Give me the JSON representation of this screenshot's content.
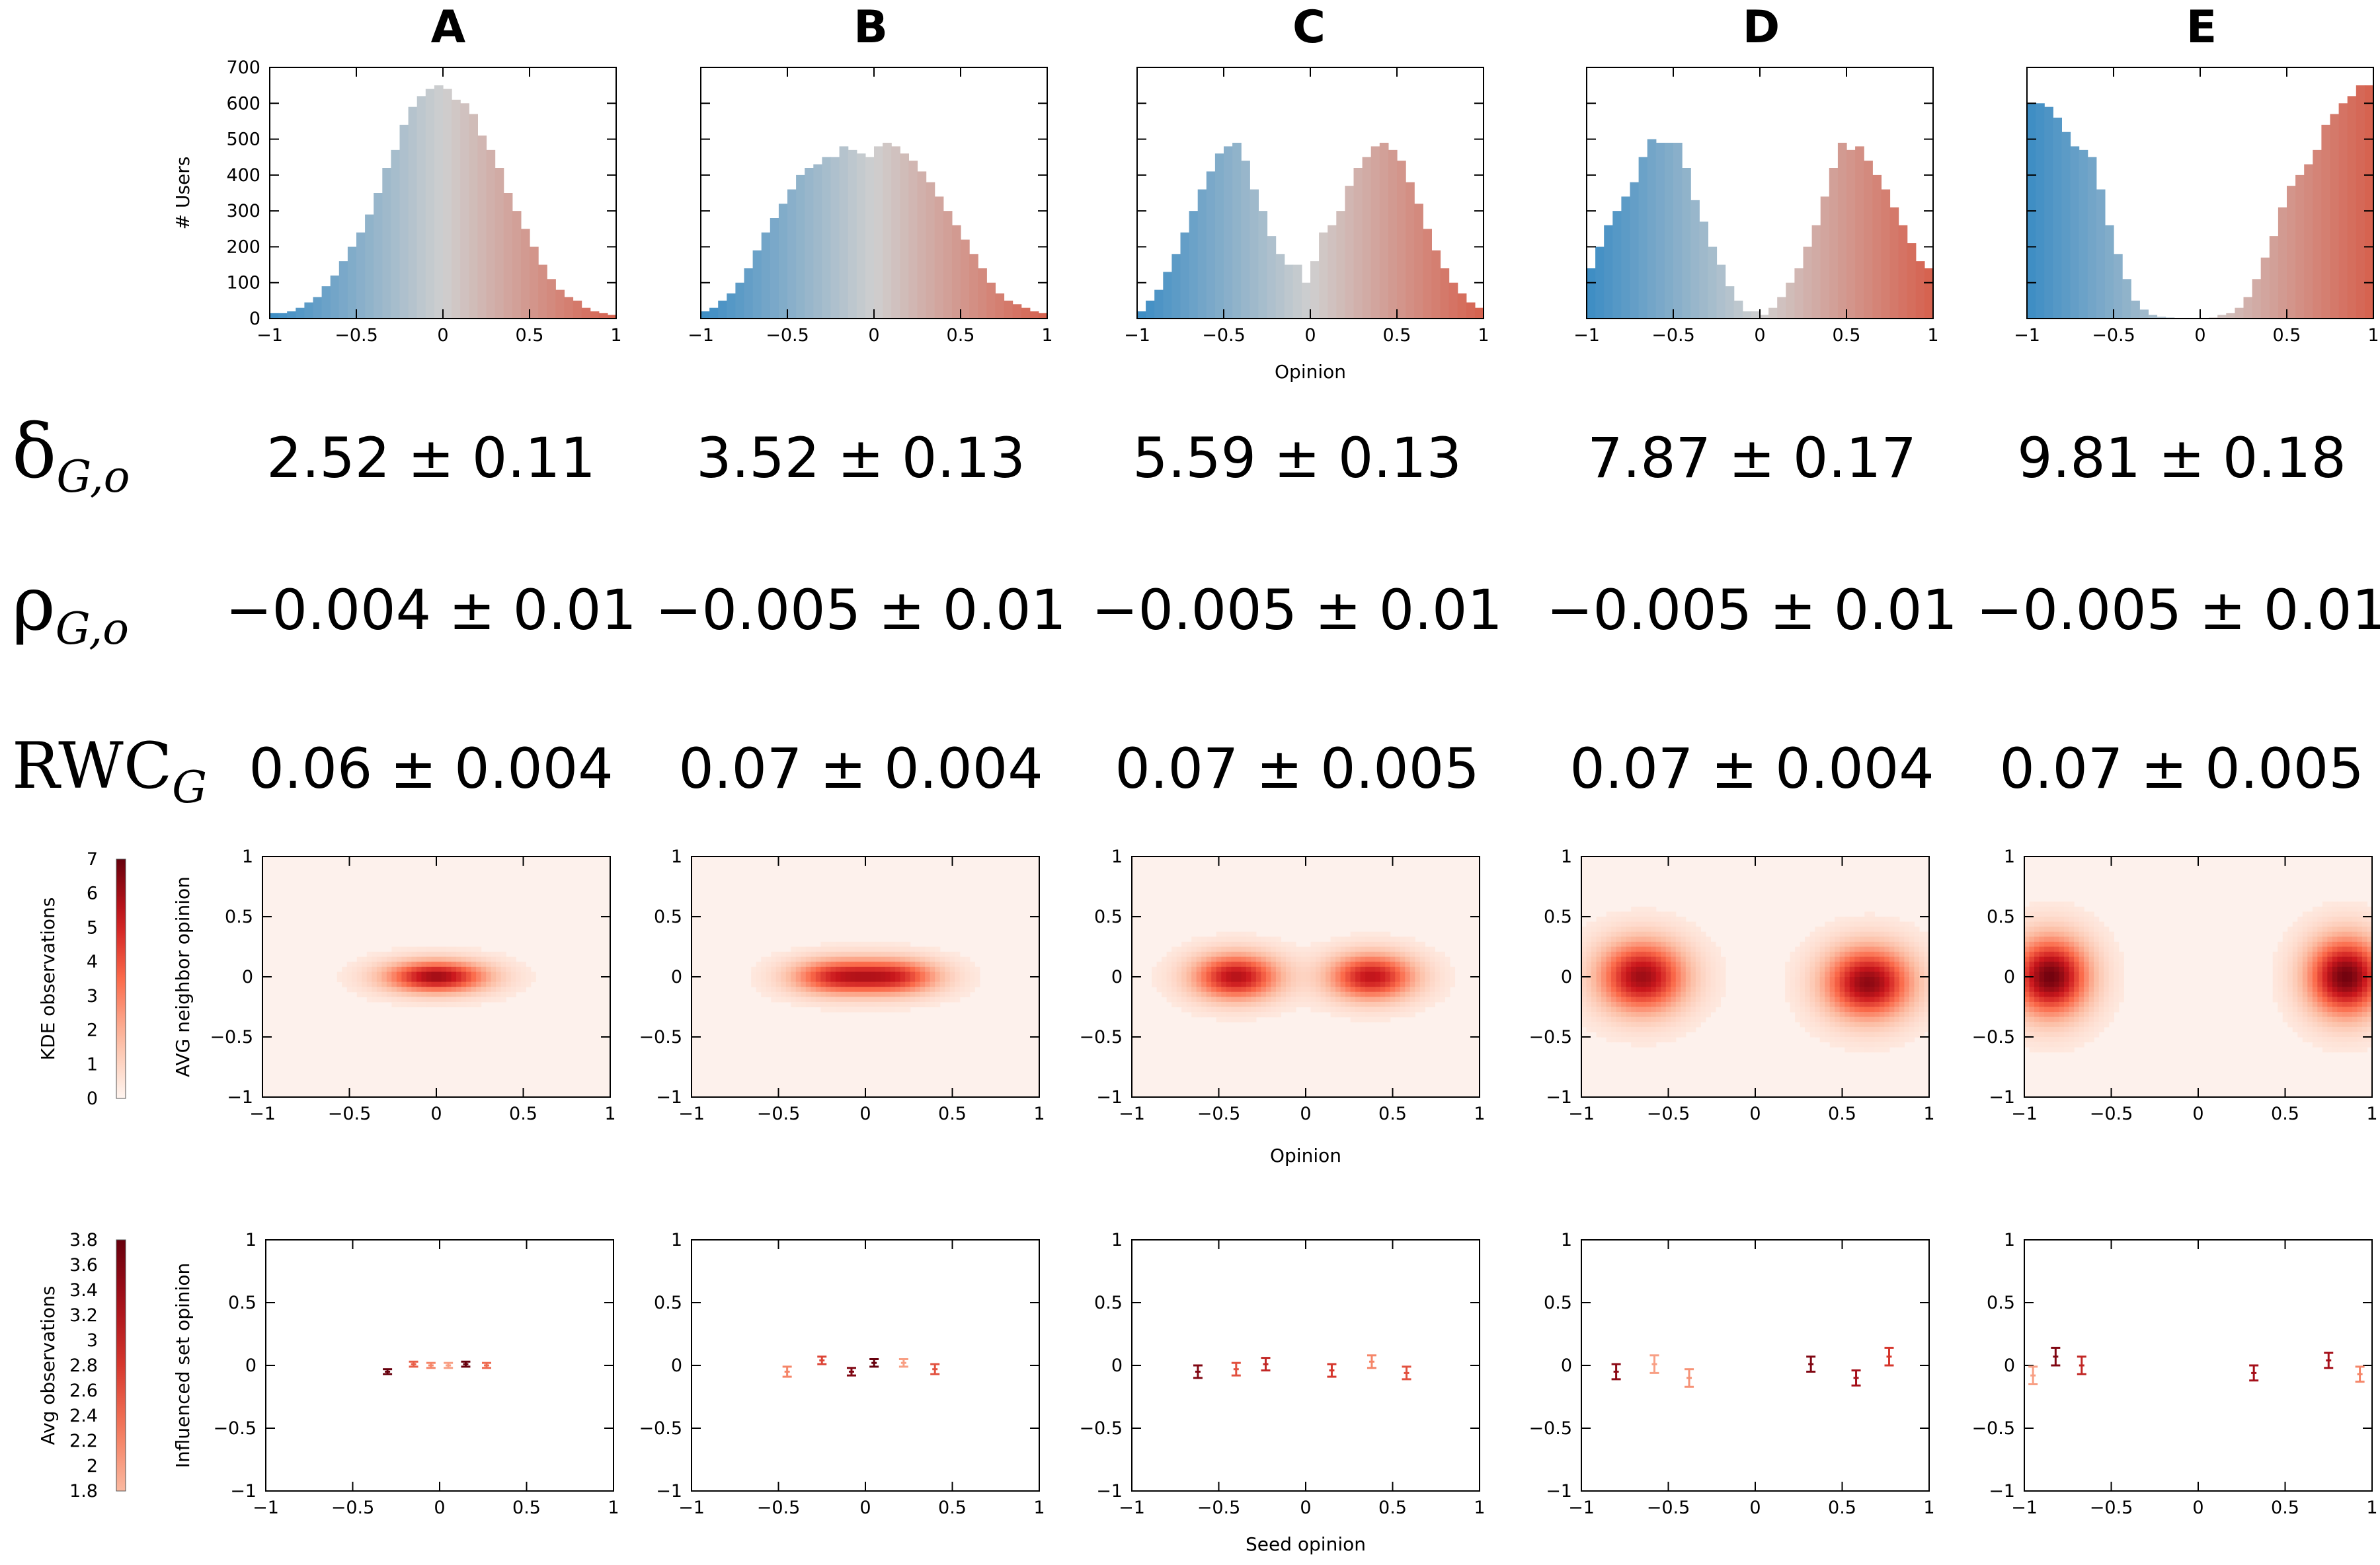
{
  "panel_letters": [
    "A",
    "B",
    "C",
    "D",
    "E"
  ],
  "metric_rows": [
    {
      "symbol": "δ",
      "subscript": "G,o",
      "values": [
        "2.52 ± 0.11",
        "3.52 ± 0.13",
        "5.59 ± 0.13",
        "7.87 ± 0.17",
        "9.81 ± 0.18"
      ]
    },
    {
      "symbol": "ρ",
      "subscript": "G,o",
      "values": [
        "−0.004 ± 0.01",
        "−0.005 ± 0.01",
        "−0.005 ± 0.01",
        "−0.005 ± 0.01",
        "−0.005 ± 0.01"
      ]
    },
    {
      "symbol": "RWC",
      "subscript": "G",
      "values": [
        "0.06 ± 0.004",
        "0.07 ± 0.004",
        "0.07 ± 0.005",
        "0.07 ± 0.004",
        "0.07 ± 0.005"
      ]
    }
  ],
  "colors": {
    "blue": "#3b8cc4",
    "grey": "#cfcfcf",
    "red": "#d6604d",
    "dark_red": "#67000d",
    "heat_bg": "#fdf1ec"
  },
  "chart_data": [
    {
      "type": "bar",
      "row": "histogram",
      "xlabel": "Opinion",
      "ylabel": "# Users",
      "xlim": [
        -1,
        1
      ],
      "ylim": [
        0,
        700
      ],
      "xticks": [
        "−1",
        "−0.5",
        "0",
        "0.5",
        "1"
      ],
      "yticks": [
        "0",
        "100",
        "200",
        "300",
        "400",
        "500",
        "600",
        "700"
      ],
      "bin_width": 0.05,
      "panels": [
        {
          "id": "A",
          "values": [
            15,
            15,
            20,
            30,
            45,
            60,
            90,
            120,
            160,
            200,
            240,
            290,
            350,
            420,
            470,
            540,
            590,
            620,
            640,
            650,
            640,
            610,
            600,
            570,
            510,
            470,
            420,
            350,
            300,
            250,
            200,
            150,
            110,
            80,
            60,
            50,
            30,
            20,
            15,
            10
          ]
        },
        {
          "id": "B",
          "values": [
            20,
            30,
            50,
            70,
            100,
            140,
            190,
            240,
            280,
            320,
            360,
            400,
            420,
            430,
            450,
            450,
            480,
            470,
            460,
            450,
            480,
            490,
            480,
            460,
            440,
            410,
            380,
            340,
            300,
            260,
            220,
            180,
            140,
            100,
            70,
            50,
            40,
            30,
            20,
            15
          ]
        },
        {
          "id": "C",
          "values": [
            20,
            50,
            80,
            130,
            180,
            240,
            300,
            360,
            410,
            460,
            480,
            490,
            440,
            360,
            300,
            230,
            180,
            150,
            150,
            100,
            160,
            240,
            260,
            300,
            370,
            420,
            450,
            480,
            490,
            470,
            440,
            380,
            320,
            250,
            190,
            140,
            100,
            70,
            45,
            30
          ]
        },
        {
          "id": "D",
          "values": [
            140,
            200,
            260,
            300,
            340,
            380,
            450,
            500,
            490,
            490,
            490,
            420,
            330,
            270,
            200,
            150,
            90,
            50,
            20,
            20,
            10,
            30,
            60,
            100,
            140,
            200,
            260,
            340,
            420,
            490,
            470,
            480,
            440,
            400,
            360,
            310,
            260,
            210,
            160,
            140
          ]
        },
        {
          "id": "E",
          "values": [
            600,
            600,
            590,
            560,
            520,
            480,
            470,
            450,
            360,
            260,
            180,
            110,
            50,
            25,
            10,
            5,
            3,
            2,
            2,
            2,
            2,
            3,
            10,
            15,
            30,
            60,
            110,
            170,
            230,
            310,
            370,
            400,
            430,
            470,
            540,
            570,
            600,
            620,
            650,
            650
          ]
        }
      ]
    },
    {
      "type": "heatmap",
      "row": "kde",
      "xlabel": "Opinion",
      "ylabel": "AVG neighbor opinion",
      "colorbar_label": "KDE observations",
      "colorbar_range": [
        0,
        7
      ],
      "colorbar_ticks": [
        "0",
        "1",
        "2",
        "3",
        "4",
        "5",
        "6",
        "7"
      ],
      "xlim": [
        -1,
        1
      ],
      "ylim": [
        -1,
        1
      ],
      "xticks": [
        "−1",
        "−0.5",
        "0",
        "0.5",
        "1"
      ],
      "yticks": [
        "−1",
        "−0.5",
        "0",
        "0.5",
        "1"
      ],
      "panels": [
        {
          "id": "A",
          "blobs": [
            {
              "x": 0.0,
              "y": 0.0,
              "sx": 0.2,
              "sy": 0.09,
              "peak": 6.0
            }
          ]
        },
        {
          "id": "B",
          "blobs": [
            {
              "x": -0.17,
              "y": 0.0,
              "sx": 0.18,
              "sy": 0.1,
              "peak": 4.5
            },
            {
              "x": 0.17,
              "y": 0.0,
              "sx": 0.18,
              "sy": 0.1,
              "peak": 4.5
            }
          ]
        },
        {
          "id": "C",
          "blobs": [
            {
              "x": -0.4,
              "y": 0.0,
              "sx": 0.17,
              "sy": 0.13,
              "peak": 5.6
            },
            {
              "x": 0.38,
              "y": 0.0,
              "sx": 0.17,
              "sy": 0.13,
              "peak": 5.4
            }
          ]
        },
        {
          "id": "D",
          "blobs": [
            {
              "x": -0.65,
              "y": 0.0,
              "sx": 0.17,
              "sy": 0.2,
              "peak": 6.0
            },
            {
              "x": 0.65,
              "y": -0.05,
              "sx": 0.17,
              "sy": 0.2,
              "peak": 6.3
            }
          ]
        },
        {
          "id": "E",
          "blobs": [
            {
              "x": -0.85,
              "y": 0.0,
              "sx": 0.15,
              "sy": 0.22,
              "peak": 6.8
            },
            {
              "x": 0.85,
              "y": 0.0,
              "sx": 0.15,
              "sy": 0.22,
              "peak": 6.8
            }
          ]
        }
      ]
    },
    {
      "type": "scatter",
      "row": "influence",
      "xlabel": "Seed opinion",
      "ylabel": "Influenced set opinion",
      "colorbar_label": "Avg observations",
      "colorbar_range": [
        1.8,
        3.8
      ],
      "colorbar_ticks": [
        "1.8",
        "2",
        "2.2",
        "2.4",
        "2.6",
        "2.8",
        "3",
        "3.2",
        "3.4",
        "3.6",
        "3.8"
      ],
      "xlim": [
        -1,
        1
      ],
      "ylim": [
        -1,
        1
      ],
      "xticks": [
        "−1",
        "−0.5",
        "0",
        "0.5",
        "1"
      ],
      "yticks": [
        "−1",
        "−0.5",
        "0",
        "0.5",
        "1"
      ],
      "panels": [
        {
          "id": "A",
          "points": [
            {
              "x": -0.3,
              "y": -0.05,
              "err": 0.02,
              "obs": 3.8
            },
            {
              "x": -0.15,
              "y": 0.01,
              "err": 0.02,
              "obs": 2.5
            },
            {
              "x": -0.05,
              "y": 0.0,
              "err": 0.02,
              "obs": 2.2
            },
            {
              "x": 0.05,
              "y": 0.0,
              "err": 0.02,
              "obs": 2.0
            },
            {
              "x": 0.15,
              "y": 0.01,
              "err": 0.02,
              "obs": 3.8
            },
            {
              "x": 0.27,
              "y": 0.0,
              "err": 0.02,
              "obs": 2.4
            }
          ]
        },
        {
          "id": "B",
          "points": [
            {
              "x": -0.45,
              "y": -0.05,
              "err": 0.04,
              "obs": 2.2
            },
            {
              "x": -0.25,
              "y": 0.04,
              "err": 0.03,
              "obs": 2.7
            },
            {
              "x": -0.08,
              "y": -0.05,
              "err": 0.03,
              "obs": 3.6
            },
            {
              "x": 0.05,
              "y": 0.02,
              "err": 0.03,
              "obs": 3.8
            },
            {
              "x": 0.22,
              "y": 0.02,
              "err": 0.03,
              "obs": 2.0
            },
            {
              "x": 0.4,
              "y": -0.03,
              "err": 0.04,
              "obs": 2.6
            }
          ]
        },
        {
          "id": "C",
          "points": [
            {
              "x": -0.62,
              "y": -0.05,
              "err": 0.05,
              "obs": 3.6
            },
            {
              "x": -0.4,
              "y": -0.03,
              "err": 0.05,
              "obs": 2.6
            },
            {
              "x": -0.23,
              "y": 0.01,
              "err": 0.05,
              "obs": 3.0
            },
            {
              "x": 0.15,
              "y": -0.04,
              "err": 0.05,
              "obs": 2.8
            },
            {
              "x": 0.38,
              "y": 0.03,
              "err": 0.05,
              "obs": 2.2
            },
            {
              "x": 0.58,
              "y": -0.06,
              "err": 0.05,
              "obs": 2.6
            }
          ]
        },
        {
          "id": "D",
          "points": [
            {
              "x": -0.8,
              "y": -0.05,
              "err": 0.06,
              "obs": 3.5
            },
            {
              "x": -0.58,
              "y": 0.01,
              "err": 0.07,
              "obs": 2.0
            },
            {
              "x": -0.38,
              "y": -0.1,
              "err": 0.07,
              "obs": 2.1
            },
            {
              "x": 0.32,
              "y": 0.01,
              "err": 0.06,
              "obs": 3.6
            },
            {
              "x": 0.58,
              "y": -0.1,
              "err": 0.06,
              "obs": 3.3
            },
            {
              "x": 0.77,
              "y": 0.07,
              "err": 0.07,
              "obs": 2.8
            }
          ]
        },
        {
          "id": "E",
          "points": [
            {
              "x": -0.95,
              "y": -0.08,
              "err": 0.07,
              "obs": 2.0
            },
            {
              "x": -0.82,
              "y": 0.07,
              "err": 0.07,
              "obs": 3.6
            },
            {
              "x": -0.67,
              "y": 0.0,
              "err": 0.07,
              "obs": 3.0
            },
            {
              "x": 0.32,
              "y": -0.06,
              "err": 0.06,
              "obs": 3.3
            },
            {
              "x": 0.75,
              "y": 0.04,
              "err": 0.06,
              "obs": 3.3
            },
            {
              "x": 0.93,
              "y": -0.07,
              "err": 0.06,
              "obs": 2.2
            }
          ]
        }
      ]
    }
  ]
}
